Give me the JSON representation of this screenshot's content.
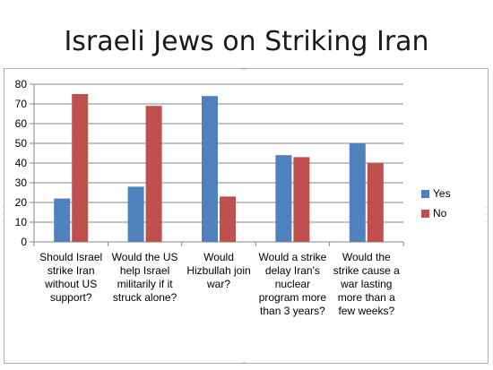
{
  "chart_data": {
    "type": "bar",
    "title": "Israeli Jews on Striking Iran",
    "categories": [
      [
        "Should Israel",
        "strike Iran",
        "without US",
        "support?"
      ],
      [
        "Would the US",
        "help Israel",
        "militarily if it",
        "struck alone?"
      ],
      [
        "Would",
        "Hizbullah join",
        "war?"
      ],
      [
        "Would a strike",
        "delay Iran's",
        "nuclear",
        "program more",
        "than 3 years?"
      ],
      [
        "Would the",
        "strike cause a",
        "war lasting",
        "more than a",
        "few weeks?"
      ]
    ],
    "series": [
      {
        "name": "Yes",
        "color": "#4f81bd",
        "values": [
          22,
          28,
          74,
          44,
          50
        ]
      },
      {
        "name": "No",
        "color": "#c0504d",
        "values": [
          75,
          69,
          23,
          43,
          40
        ]
      }
    ],
    "ylim": [
      0,
      80
    ],
    "yticks": [
      0,
      10,
      20,
      30,
      40,
      50,
      60,
      70,
      80
    ],
    "grid": true,
    "legend": "right"
  }
}
